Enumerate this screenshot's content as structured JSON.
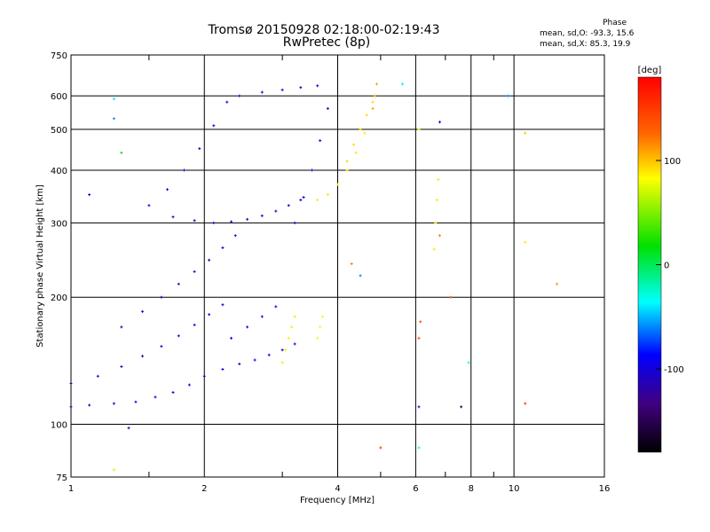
{
  "title_line1": "Tromsø 20150928 02:18:00-02:19:43",
  "title_line2": "RwPretec (8p)",
  "phase_box": {
    "heading": "Phase",
    "line1": "mean, sd,O: -93.3, 15.6",
    "line2": "mean, sd,X:  85.3, 19.9"
  },
  "chart_data": {
    "type": "scatter",
    "xlabel": "Frequency [MHz]",
    "ylabel": "Stationary phase Virtual Height [km]",
    "x_scale": "log",
    "y_scale": "log",
    "xlim": [
      1,
      16
    ],
    "ylim": [
      75,
      750
    ],
    "x_ticks": [
      {
        "value": 1,
        "label": "1"
      },
      {
        "value": 2,
        "label": "2"
      },
      {
        "value": 4,
        "label": "4"
      },
      {
        "value": 6,
        "label": "6"
      },
      {
        "value": 8,
        "label": "8"
      },
      {
        "value": 10,
        "label": "10"
      },
      {
        "value": 16,
        "label": "16"
      }
    ],
    "x_gridlines": [
      2,
      4,
      6,
      8,
      10
    ],
    "x_minor_ticks": [
      1.5,
      3,
      5,
      7,
      9
    ],
    "y_ticks": [
      {
        "value": 75,
        "label": "75"
      },
      {
        "value": 100,
        "label": "100"
      },
      {
        "value": 200,
        "label": "200"
      },
      {
        "value": 300,
        "label": "300"
      },
      {
        "value": 400,
        "label": "400"
      },
      {
        "value": 500,
        "label": "500"
      },
      {
        "value": 600,
        "label": "600"
      },
      {
        "value": 750,
        "label": "750"
      }
    ],
    "y_gridlines": [
      100,
      200,
      300,
      400,
      500,
      600
    ],
    "grid": true,
    "colorbar": {
      "label": "[deg]",
      "range": [
        -180,
        180
      ],
      "ticks": [
        {
          "value": 100,
          "label": "100"
        },
        {
          "value": 0,
          "label": "0"
        },
        {
          "value": -100,
          "label": "-100"
        }
      ]
    },
    "series": [
      {
        "traces": [
          {
            "x": [
              1.0,
              1.1,
              1.25,
              1.4,
              1.55,
              1.7,
              1.85,
              2.0,
              2.2,
              2.4,
              2.6,
              2.8,
              3.0,
              3.2
            ],
            "y": [
              110,
              111,
              112,
              113,
              116,
              119,
              124,
              130,
              135,
              139,
              142,
              146,
              150,
              155
            ],
            "phase": -100
          },
          {
            "x": [
              1.0,
              1.15,
              1.3,
              1.45,
              1.6,
              1.75,
              1.9,
              2.05,
              2.2
            ],
            "y": [
              125,
              130,
              137,
              145,
              153,
              162,
              172,
              182,
              192
            ],
            "phase": -110
          },
          {
            "x": [
              1.3,
              1.45,
              1.6,
              1.75,
              1.9,
              2.05,
              2.2,
              2.35
            ],
            "y": [
              170,
              185,
              200,
              215,
              230,
              245,
              262,
              280
            ],
            "phase": -105
          },
          {
            "x": [
              1.7,
              1.9,
              2.1,
              2.3,
              2.5,
              2.7,
              2.9,
              3.1,
              3.3
            ],
            "y": [
              310,
              304,
              300,
              302,
              306,
              312,
              320,
              330,
              340
            ],
            "phase": -105
          },
          {
            "x": [
              1.5,
              1.65,
              1.8,
              1.95,
              2.1,
              2.25
            ],
            "y": [
              330,
              360,
              400,
              450,
              510,
              580
            ],
            "phase": -100
          },
          {
            "x": [
              2.4,
              2.7,
              3.0,
              3.3,
              3.6
            ],
            "y": [
              600,
              612,
              620,
              628,
              634
            ],
            "phase": -105
          },
          {
            "x": [
              3.2,
              3.35,
              3.5,
              3.65,
              3.8
            ],
            "y": [
              300,
              345,
              400,
              470,
              560
            ],
            "phase": -100
          },
          {
            "x": [
              2.3,
              2.5,
              2.7,
              2.9
            ],
            "y": [
              160,
              170,
              180,
              190
            ],
            "phase": -95
          },
          {
            "x": [
              3.0,
              3.05,
              3.1,
              3.15,
              3.2
            ],
            "y": [
              140,
              150,
              160,
              170,
              180
            ],
            "phase": 90
          },
          {
            "x": [
              3.6,
              3.65,
              3.7
            ],
            "y": [
              160,
              170,
              180
            ],
            "phase": 85
          },
          {
            "x": [
              3.6,
              3.8,
              4.0,
              4.2,
              4.4,
              4.6
            ],
            "y": [
              340,
              350,
              370,
              400,
              440,
              490
            ],
            "phase": 90
          },
          {
            "x": [
              4.2,
              4.35,
              4.5,
              4.65,
              4.8
            ],
            "y": [
              420,
              460,
              500,
              540,
              580
            ],
            "phase": 95
          },
          {
            "x": [
              4.8,
              4.85,
              4.9
            ],
            "y": [
              560,
              600,
              640
            ],
            "phase": 110
          },
          {
            "x": [
              6.6,
              6.65,
              6.7,
              6.75
            ],
            "y": [
              260,
              300,
              340,
              380
            ],
            "phase": 90
          },
          {
            "x": [
              6.1,
              6.15
            ],
            "y": [
              160,
              175
            ],
            "phase": 140
          }
        ],
        "isolated_points": [
          {
            "x": 1.1,
            "y": 350,
            "phase": -100
          },
          {
            "x": 1.25,
            "y": 590,
            "phase": -40
          },
          {
            "x": 1.25,
            "y": 530,
            "phase": -60
          },
          {
            "x": 1.3,
            "y": 440,
            "phase": 20
          },
          {
            "x": 1.35,
            "y": 98,
            "phase": -100
          },
          {
            "x": 1.25,
            "y": 78,
            "phase": 70
          },
          {
            "x": 5.0,
            "y": 88,
            "phase": 150
          },
          {
            "x": 6.1,
            "y": 110,
            "phase": -100
          },
          {
            "x": 6.1,
            "y": 88,
            "phase": -30
          },
          {
            "x": 6.1,
            "y": 500,
            "phase": 80
          },
          {
            "x": 6.8,
            "y": 520,
            "phase": -100
          },
          {
            "x": 6.8,
            "y": 280,
            "phase": 120
          },
          {
            "x": 7.2,
            "y": 200,
            "phase": 140
          },
          {
            "x": 7.6,
            "y": 110,
            "phase": -150
          },
          {
            "x": 7.9,
            "y": 140,
            "phase": -30
          },
          {
            "x": 9.7,
            "y": 600,
            "phase": -60
          },
          {
            "x": 10.6,
            "y": 490,
            "phase": 100
          },
          {
            "x": 10.6,
            "y": 270,
            "phase": 90
          },
          {
            "x": 10.6,
            "y": 112,
            "phase": 150
          },
          {
            "x": 12.5,
            "y": 215,
            "phase": 110
          },
          {
            "x": 5.6,
            "y": 640,
            "phase": -40
          },
          {
            "x": 4.3,
            "y": 240,
            "phase": 120
          },
          {
            "x": 4.5,
            "y": 225,
            "phase": -60
          }
        ]
      }
    ]
  }
}
